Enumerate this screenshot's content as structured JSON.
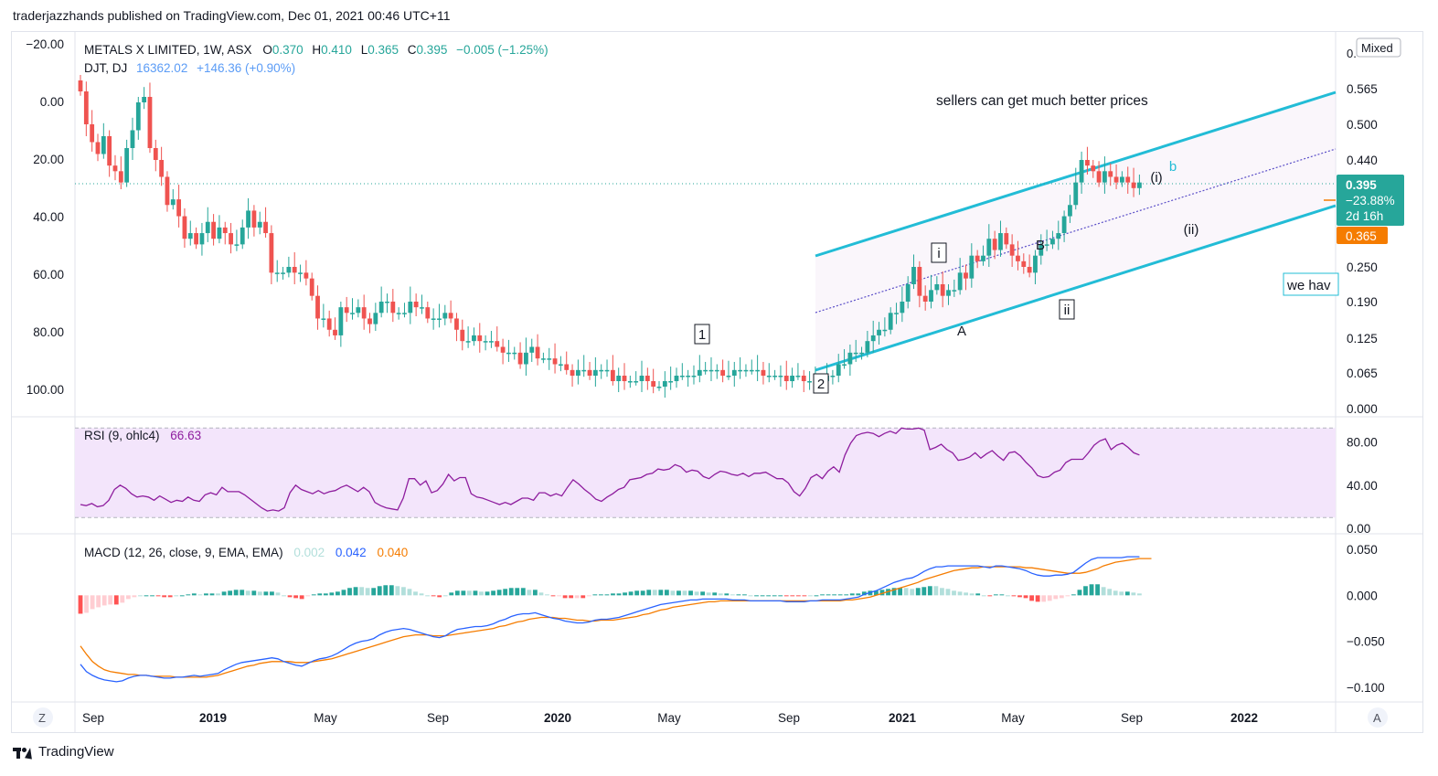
{
  "header": {
    "published_text": "traderjazzhands published on TradingView.com, Dec 01, 2021 00:46 UTC+11"
  },
  "footer": {
    "brand": "TradingView"
  },
  "chart_data": [
    {
      "type": "candlestick",
      "title": "METALS X LIMITED, 1W, ASX",
      "ohlc": {
        "o_label": "O",
        "o": "0.370",
        "h_label": "H",
        "h": "0.410",
        "l_label": "L",
        "l": "0.365",
        "c_label": "C",
        "c": "0.395",
        "change": "−0.005 (−1.25%)"
      },
      "compare": {
        "symbol": "DJT, DJ",
        "value": "16362.02",
        "change": "+146.36 (+0.90%)"
      },
      "right_axis_ticks": [
        "0.565",
        "0.500",
        "0.440",
        "0.250",
        "0.190",
        "0.125",
        "0.065",
        "0.000"
      ],
      "right_axis_top_partial": "0.",
      "mixed_label": "Mixed",
      "price_label": {
        "price": "0.395",
        "pct": "−23.88%",
        "countdown": "2d 16h",
        "low": "0.365"
      },
      "left_axis_ticks": [
        "−20.00",
        "0.00",
        "20.00",
        "40.00",
        "60.00",
        "80.00",
        "100.00"
      ],
      "annotations": {
        "text": "sellers can get much better prices",
        "note": "we hav",
        "waves": [
          "1",
          "2",
          "i",
          "ii",
          "A",
          "B",
          "(i)",
          "(ii)",
          "b"
        ]
      },
      "candles_close": [
        0.56,
        0.5,
        0.47,
        0.45,
        0.48,
        0.43,
        0.42,
        0.4,
        0.46,
        0.49,
        0.54,
        0.55,
        0.46,
        0.44,
        0.41,
        0.36,
        0.37,
        0.34,
        0.3,
        0.31,
        0.29,
        0.31,
        0.33,
        0.3,
        0.32,
        0.31,
        0.29,
        0.29,
        0.32,
        0.35,
        0.32,
        0.33,
        0.31,
        0.24,
        0.24,
        0.24,
        0.25,
        0.24,
        0.24,
        0.23,
        0.2,
        0.16,
        0.16,
        0.14,
        0.13,
        0.18,
        0.17,
        0.17,
        0.18,
        0.16,
        0.15,
        0.17,
        0.19,
        0.19,
        0.17,
        0.17,
        0.17,
        0.19,
        0.18,
        0.18,
        0.16,
        0.16,
        0.16,
        0.17,
        0.16,
        0.14,
        0.12,
        0.12,
        0.13,
        0.12,
        0.12,
        0.12,
        0.11,
        0.1,
        0.1,
        0.1,
        0.08,
        0.1,
        0.11,
        0.09,
        0.09,
        0.09,
        0.08,
        0.08,
        0.07,
        0.06,
        0.07,
        0.07,
        0.06,
        0.07,
        0.07,
        0.07,
        0.05,
        0.06,
        0.05,
        0.05,
        0.05,
        0.06,
        0.05,
        0.04,
        0.04,
        0.05,
        0.05,
        0.06,
        0.06,
        0.06,
        0.06,
        0.07,
        0.07,
        0.07,
        0.07,
        0.06,
        0.06,
        0.07,
        0.07,
        0.07,
        0.07,
        0.07,
        0.06,
        0.06,
        0.06,
        0.06,
        0.05,
        0.06,
        0.06,
        0.05,
        0.05,
        0.05,
        0.05,
        0.06,
        0.06,
        0.08,
        0.08,
        0.1,
        0.1,
        0.1,
        0.12,
        0.13,
        0.14,
        0.14,
        0.17,
        0.17,
        0.19,
        0.22,
        0.25,
        0.2,
        0.19,
        0.21,
        0.22,
        0.2,
        0.21,
        0.21,
        0.24,
        0.23,
        0.27,
        0.26,
        0.27,
        0.3,
        0.28,
        0.31,
        0.29,
        0.27,
        0.26,
        0.25,
        0.24,
        0.27,
        0.29,
        0.29,
        0.3,
        0.31,
        0.34,
        0.36,
        0.4,
        0.44,
        0.43,
        0.42,
        0.4,
        0.42,
        0.41,
        0.4,
        0.41,
        0.4,
        0.39,
        0.4
      ],
      "x_axis_labels": [
        "Sep",
        "2019",
        "May",
        "Sep",
        "2020",
        "May",
        "Sep",
        "2021",
        "May",
        "Sep",
        "2022"
      ],
      "x_axis_left_label": "Z",
      "x_axis_right_label": "A",
      "colors": {
        "up": "#26a69a",
        "down": "#ef5350",
        "channel": "#22bcd6",
        "ma": "#f57c00",
        "dotted": "#5b4fc8",
        "dotted_h": "#26a69a"
      }
    },
    {
      "type": "line",
      "title": "RSI (9, ohlc4)",
      "value": "66.63",
      "y_ticks": [
        "80.00",
        "40.00",
        "0.00"
      ],
      "ylim": [
        0,
        100
      ],
      "band": [
        10,
        93
      ],
      "color": "#8e1d9e",
      "values": [
        22,
        21,
        23,
        20,
        21,
        26,
        36,
        40,
        37,
        32,
        29,
        30,
        29,
        26,
        30,
        27,
        24,
        26,
        25,
        29,
        26,
        25,
        31,
        33,
        31,
        38,
        34,
        34,
        34,
        31,
        27,
        23,
        19,
        16,
        17,
        16,
        19,
        33,
        40,
        36,
        34,
        32,
        35,
        32,
        34,
        35,
        38,
        40,
        37,
        34,
        38,
        34,
        24,
        21,
        19,
        18,
        17,
        28,
        46,
        46,
        40,
        44,
        33,
        35,
        41,
        50,
        44,
        47,
        47,
        32,
        29,
        28,
        26,
        24,
        22,
        24,
        22,
        25,
        28,
        28,
        26,
        33,
        33,
        30,
        32,
        30,
        38,
        45,
        41,
        36,
        32,
        27,
        25,
        29,
        32,
        36,
        38,
        45,
        46,
        47,
        50,
        51,
        55,
        54,
        55,
        59,
        57,
        52,
        54,
        53,
        48,
        46,
        50,
        53,
        52,
        50,
        49,
        51,
        48,
        51,
        51,
        52,
        49,
        46,
        46,
        42,
        34,
        30,
        37,
        47,
        50,
        46,
        53,
        57,
        52,
        68,
        79,
        86,
        88,
        89,
        88,
        85,
        88,
        90,
        88,
        93,
        92,
        92,
        93,
        91,
        73,
        75,
        78,
        73,
        70,
        63,
        64,
        66,
        70,
        65,
        69,
        72,
        67,
        63,
        70,
        71,
        67,
        61,
        56,
        49,
        47,
        48,
        52,
        54,
        61,
        64,
        64,
        64,
        70,
        77,
        81,
        83,
        73,
        77,
        79,
        75,
        70,
        68
      ]
    },
    {
      "type": "line",
      "title": "MACD (12, 26, close, 9, EMA, EMA)",
      "hist_value": "0.002",
      "macd_value": "0.042",
      "signal_value": "0.040",
      "y_ticks": [
        "0.050",
        "0.000",
        "−0.050",
        "−0.100"
      ],
      "ylim": [
        -0.11,
        0.055
      ],
      "colors": {
        "macd": "#2962ff",
        "signal": "#f57c00",
        "hist_up_strong": "#26a69a",
        "hist_up_weak": "#b2dfdb",
        "hist_down_strong": "#ff5252",
        "hist_down_weak": "#ffcdd2"
      },
      "macd": [
        -0.075,
        -0.083,
        -0.087,
        -0.09,
        -0.092,
        -0.093,
        -0.094,
        -0.093,
        -0.09,
        -0.088,
        -0.087,
        -0.087,
        -0.088,
        -0.089,
        -0.09,
        -0.09,
        -0.089,
        -0.089,
        -0.088,
        -0.087,
        -0.088,
        -0.087,
        -0.086,
        -0.085,
        -0.081,
        -0.078,
        -0.075,
        -0.073,
        -0.072,
        -0.071,
        -0.07,
        -0.069,
        -0.068,
        -0.069,
        -0.072,
        -0.074,
        -0.076,
        -0.077,
        -0.074,
        -0.071,
        -0.069,
        -0.068,
        -0.066,
        -0.063,
        -0.059,
        -0.055,
        -0.052,
        -0.05,
        -0.049,
        -0.047,
        -0.043,
        -0.04,
        -0.038,
        -0.037,
        -0.036,
        -0.037,
        -0.039,
        -0.041,
        -0.043,
        -0.045,
        -0.046,
        -0.044,
        -0.04,
        -0.037,
        -0.036,
        -0.035,
        -0.034,
        -0.034,
        -0.033,
        -0.031,
        -0.028,
        -0.026,
        -0.023,
        -0.021,
        -0.02,
        -0.02,
        -0.019,
        -0.021,
        -0.023,
        -0.025,
        -0.026,
        -0.028,
        -0.029,
        -0.03,
        -0.03,
        -0.029,
        -0.027,
        -0.026,
        -0.026,
        -0.025,
        -0.024,
        -0.022,
        -0.02,
        -0.018,
        -0.016,
        -0.014,
        -0.012,
        -0.01,
        -0.009,
        -0.008,
        -0.007,
        -0.006,
        -0.005,
        -0.005,
        -0.004,
        -0.004,
        -0.004,
        -0.004,
        -0.004,
        -0.005,
        -0.005,
        -0.005,
        -0.006,
        -0.006,
        -0.006,
        -0.006,
        -0.006,
        -0.006,
        -0.007,
        -0.007,
        -0.007,
        -0.007,
        -0.006,
        -0.006,
        -0.005,
        -0.005,
        -0.005,
        -0.005,
        -0.004,
        -0.003,
        -0.002,
        0.001,
        0.003,
        0.005,
        0.008,
        0.011,
        0.014,
        0.016,
        0.018,
        0.019,
        0.022,
        0.026,
        0.029,
        0.031,
        0.031,
        0.032,
        0.032,
        0.032,
        0.032,
        0.032,
        0.032,
        0.031,
        0.03,
        0.032,
        0.032,
        0.031,
        0.03,
        0.029,
        0.027,
        0.024,
        0.022,
        0.021,
        0.021,
        0.022,
        0.022,
        0.023,
        0.025,
        0.03,
        0.035,
        0.039,
        0.041,
        0.041,
        0.041,
        0.041,
        0.041,
        0.042,
        0.042,
        0.042
      ],
      "signal": [
        -0.055,
        -0.064,
        -0.072,
        -0.077,
        -0.081,
        -0.083,
        -0.084,
        -0.085,
        -0.086,
        -0.086,
        -0.087,
        -0.087,
        -0.088,
        -0.088,
        -0.088,
        -0.088,
        -0.089,
        -0.089,
        -0.089,
        -0.089,
        -0.089,
        -0.089,
        -0.088,
        -0.087,
        -0.085,
        -0.083,
        -0.081,
        -0.079,
        -0.077,
        -0.076,
        -0.074,
        -0.073,
        -0.072,
        -0.072,
        -0.072,
        -0.072,
        -0.073,
        -0.073,
        -0.073,
        -0.072,
        -0.071,
        -0.07,
        -0.069,
        -0.067,
        -0.065,
        -0.063,
        -0.061,
        -0.059,
        -0.057,
        -0.055,
        -0.053,
        -0.051,
        -0.049,
        -0.047,
        -0.045,
        -0.044,
        -0.043,
        -0.043,
        -0.043,
        -0.044,
        -0.044,
        -0.044,
        -0.043,
        -0.042,
        -0.041,
        -0.04,
        -0.039,
        -0.038,
        -0.037,
        -0.036,
        -0.034,
        -0.033,
        -0.031,
        -0.029,
        -0.028,
        -0.026,
        -0.025,
        -0.024,
        -0.024,
        -0.024,
        -0.025,
        -0.025,
        -0.026,
        -0.027,
        -0.027,
        -0.028,
        -0.028,
        -0.027,
        -0.027,
        -0.027,
        -0.026,
        -0.025,
        -0.024,
        -0.023,
        -0.021,
        -0.02,
        -0.018,
        -0.016,
        -0.015,
        -0.013,
        -0.012,
        -0.011,
        -0.01,
        -0.009,
        -0.008,
        -0.007,
        -0.007,
        -0.006,
        -0.006,
        -0.006,
        -0.006,
        -0.006,
        -0.006,
        -0.006,
        -0.006,
        -0.006,
        -0.006,
        -0.006,
        -0.006,
        -0.006,
        -0.006,
        -0.006,
        -0.006,
        -0.006,
        -0.006,
        -0.006,
        -0.006,
        -0.006,
        -0.005,
        -0.005,
        -0.004,
        -0.003,
        -0.002,
        0.0,
        0.002,
        0.004,
        0.006,
        0.008,
        0.01,
        0.012,
        0.014,
        0.017,
        0.019,
        0.021,
        0.023,
        0.025,
        0.027,
        0.028,
        0.029,
        0.03,
        0.03,
        0.031,
        0.031,
        0.031,
        0.031,
        0.031,
        0.031,
        0.031,
        0.03,
        0.03,
        0.029,
        0.028,
        0.027,
        0.026,
        0.025,
        0.024,
        0.024,
        0.024,
        0.025,
        0.027,
        0.029,
        0.032,
        0.034,
        0.036,
        0.037,
        0.038,
        0.039,
        0.04,
        0.04,
        0.04
      ]
    }
  ]
}
